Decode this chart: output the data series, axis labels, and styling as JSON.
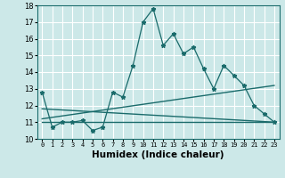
{
  "xlabel": "Humidex (Indice chaleur)",
  "background_color": "#cce8e8",
  "grid_color": "#ffffff",
  "line_color": "#1a6b6b",
  "xlim": [
    -0.5,
    23.5
  ],
  "ylim": [
    10,
    18
  ],
  "yticks": [
    10,
    11,
    12,
    13,
    14,
    15,
    16,
    17,
    18
  ],
  "xticks": [
    0,
    1,
    2,
    3,
    4,
    5,
    6,
    7,
    8,
    9,
    10,
    11,
    12,
    13,
    14,
    15,
    16,
    17,
    18,
    19,
    20,
    21,
    22,
    23
  ],
  "series1_x": [
    0,
    1,
    2,
    3,
    4,
    5,
    6,
    7,
    8,
    9,
    10,
    11,
    12,
    13,
    14,
    15,
    16,
    17,
    18,
    19,
    20,
    21,
    22,
    23
  ],
  "series1_y": [
    12.8,
    10.7,
    11.0,
    11.0,
    11.1,
    10.5,
    10.7,
    12.8,
    12.5,
    14.4,
    17.0,
    17.8,
    15.6,
    16.3,
    15.1,
    15.5,
    14.2,
    13.0,
    14.4,
    13.8,
    13.2,
    12.0,
    11.5,
    11.0
  ],
  "trend1_x": [
    0,
    23
  ],
  "trend1_y": [
    11.2,
    13.2
  ],
  "trend2_x": [
    0,
    23
  ],
  "trend2_y": [
    11.8,
    11.0
  ],
  "trend3_x": [
    0,
    23
  ],
  "trend3_y": [
    11.0,
    11.0
  ]
}
